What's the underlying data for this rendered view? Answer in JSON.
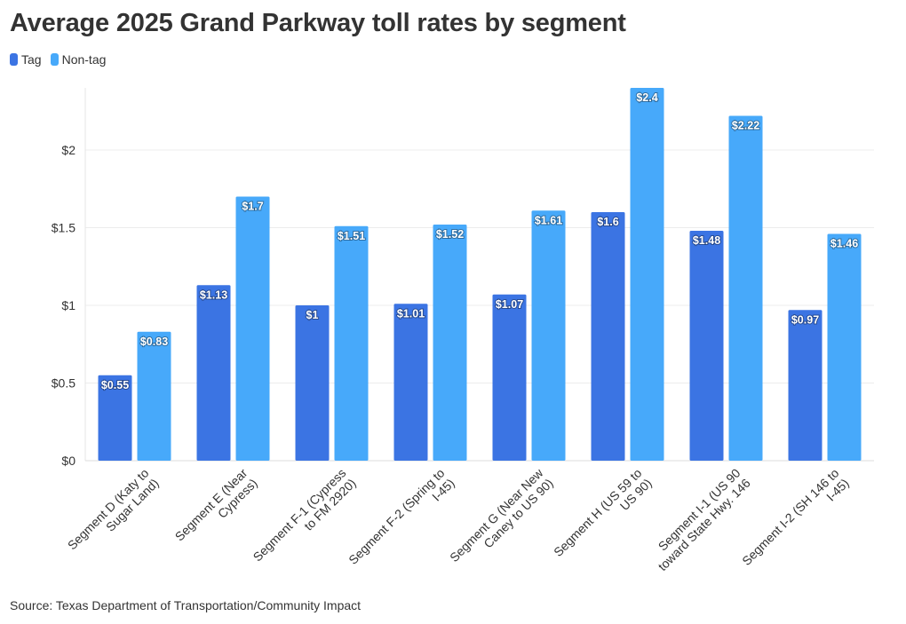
{
  "chart_data": {
    "type": "bar",
    "title": "Average 2025 Grand Parkway toll rates by segment",
    "xlabel": "",
    "ylabel": "",
    "ylim": [
      0,
      2.4
    ],
    "yticks": [
      0,
      0.5,
      1,
      1.5,
      2
    ],
    "ytick_labels": [
      "$0",
      "$0.5",
      "$1",
      "$1.5",
      "$2"
    ],
    "categories": [
      [
        "Segment D (Katy to",
        "Sugar Land)"
      ],
      [
        "Segment E (Near",
        "Cypress)"
      ],
      [
        "Segment F-1 (Cypress",
        "to FM 2920)"
      ],
      [
        "Segment F-2 (Spring to",
        "I-45)"
      ],
      [
        "Segment G (Near New",
        "Caney to US 90)"
      ],
      [
        "Segment H (US 59 to",
        "US 90)"
      ],
      [
        "Segment I-1 (US 90",
        "toward State Hwy. 146"
      ],
      [
        "Segment I-2 (SH 146 to",
        "I-45)"
      ]
    ],
    "series": [
      {
        "name": "Tag",
        "color": "#3b74e3",
        "values": [
          0.55,
          1.13,
          1.0,
          1.01,
          1.07,
          1.6,
          1.48,
          0.97
        ],
        "labels": [
          "$0.55",
          "$1.13",
          "$1",
          "$1.01",
          "$1.07",
          "$1.6",
          "$1.48",
          "$0.97"
        ]
      },
      {
        "name": "Non-tag",
        "color": "#47a9fa",
        "values": [
          0.83,
          1.7,
          1.51,
          1.52,
          1.61,
          2.4,
          2.22,
          1.46
        ],
        "labels": [
          "$0.83",
          "$1.7",
          "$1.51",
          "$1.52",
          "$1.61",
          "$2.4",
          "$2.22",
          "$1.46"
        ]
      }
    ],
    "legend": "top-left",
    "grid": true,
    "source": "Source: Texas Department of Transportation/Community Impact"
  }
}
